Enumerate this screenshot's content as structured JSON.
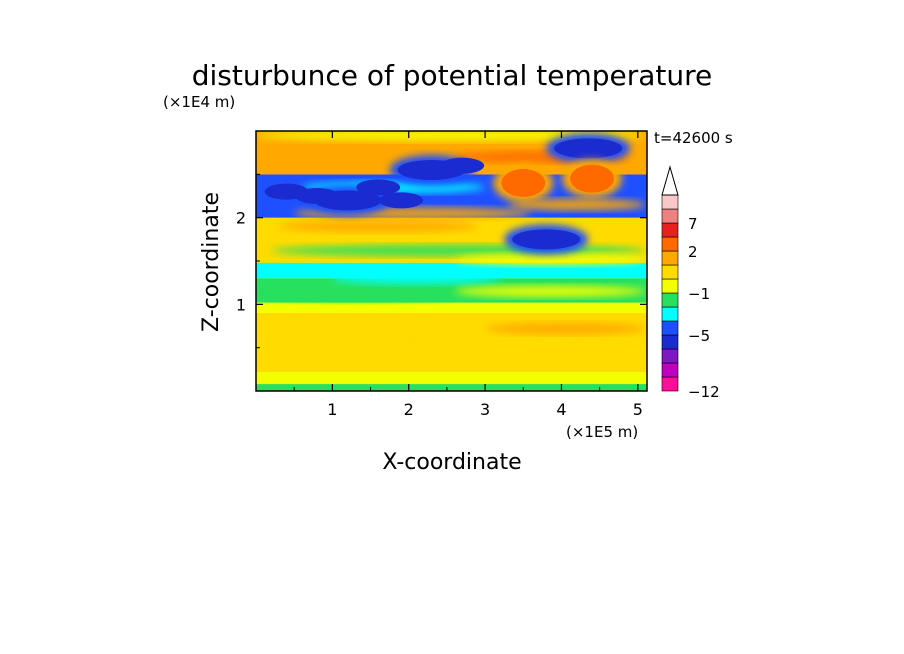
{
  "chart_data": {
    "type": "heatmap",
    "title": "disturbunce of potential temperature",
    "xlabel": "X-coordinate",
    "ylabel": "Z-coordinate",
    "x_scale_label": "(×1E5 m)",
    "y_scale_label": "(×1E4 m)",
    "time_label": "t=42600 s",
    "xlim": [
      0,
      5.12
    ],
    "ylim": [
      0,
      3.0
    ],
    "x_ticks": [
      "1",
      "2",
      "3",
      "4",
      "5"
    ],
    "y_ticks": [
      "1",
      "2"
    ],
    "colorbar": {
      "extend": "max",
      "tick_labels": [
        "7",
        "2",
        "−1",
        "−5",
        "−12"
      ],
      "colors": [
        "#ff0f99",
        "#c000c0",
        "#7d18c2",
        "#1a2bcf",
        "#1e50ff",
        "#00ffff",
        "#28e05f",
        "#f3ff00",
        "#ffdb00",
        "#ffa800",
        "#ff6a00",
        "#e81f1f",
        "#f08080",
        "#f8c8c8"
      ],
      "extend_color": "#ffffff"
    },
    "layers": [
      {
        "z_range": [
          0.0,
          0.08
        ],
        "value_class": "green"
      },
      {
        "z_range": [
          0.08,
          0.22
        ],
        "value_class": "yellow"
      },
      {
        "z_range": [
          0.22,
          0.9
        ],
        "value_class": "orange-yellow"
      },
      {
        "z_range": [
          0.9,
          1.02
        ],
        "value_class": "yellow"
      },
      {
        "z_range": [
          1.02,
          1.3
        ],
        "value_class": "green"
      },
      {
        "z_range": [
          1.3,
          1.48
        ],
        "value_class": "cyan"
      },
      {
        "z_range": [
          1.48,
          2.0
        ],
        "value_class": "yellow / orange"
      },
      {
        "z_range": [
          2.0,
          2.5
        ],
        "value_class": "blue (negative anomaly)"
      },
      {
        "z_range": [
          2.5,
          3.0
        ],
        "value_class": "orange / yellow"
      }
    ],
    "features": [
      {
        "x": 1.2,
        "z": 2.2,
        "value_class": "strong negative",
        "color": "#1a2bcf"
      },
      {
        "x": 2.3,
        "z": 2.55,
        "value_class": "strong negative",
        "color": "#1a2bcf"
      },
      {
        "x": 3.8,
        "z": 1.75,
        "value_class": "strong negative",
        "color": "#1a2bcf"
      },
      {
        "x": 4.35,
        "z": 2.8,
        "value_class": "strong negative",
        "color": "#1a2bcf"
      },
      {
        "x": 3.5,
        "z": 2.4,
        "value_class": "positive",
        "color": "#ff6a00"
      },
      {
        "x": 4.4,
        "z": 2.45,
        "value_class": "positive",
        "color": "#ff6a00"
      }
    ]
  }
}
